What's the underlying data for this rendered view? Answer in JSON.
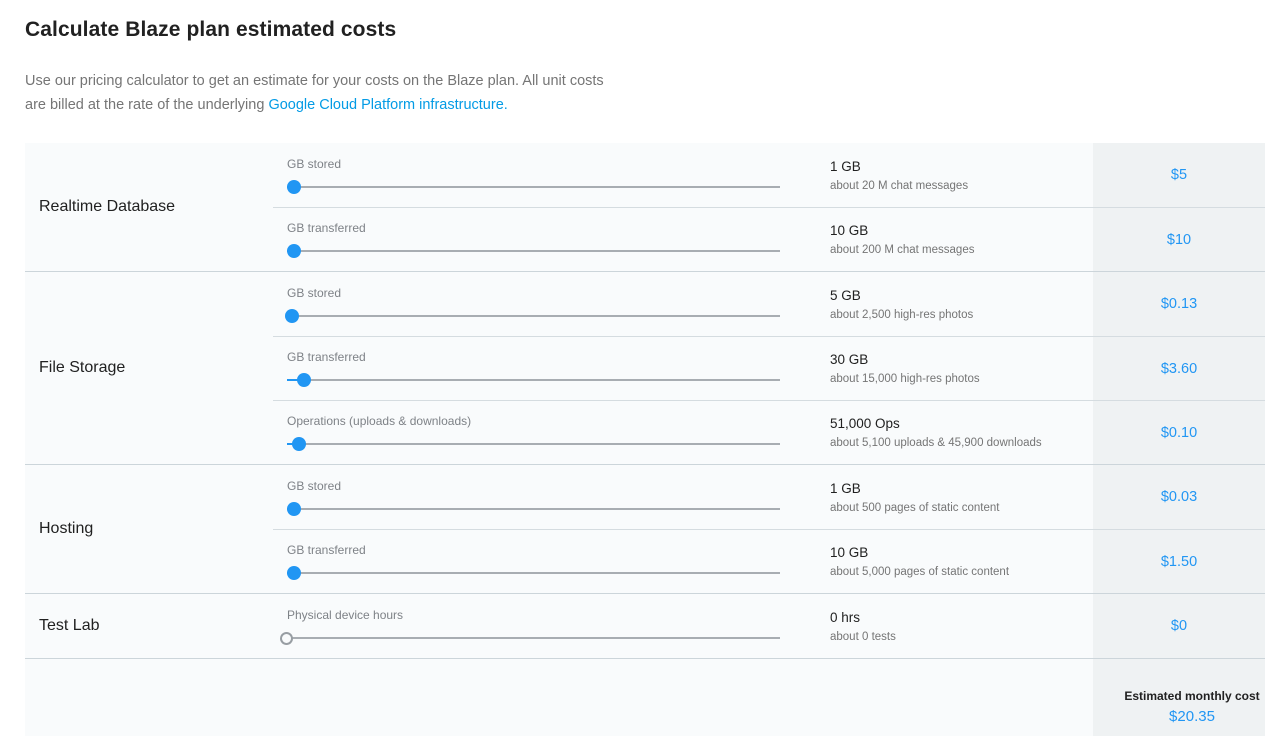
{
  "header": {
    "title": "Calculate Blaze plan estimated costs",
    "intro_line1": "Use our pricing calculator to get an estimate for your costs on the Blaze plan. All unit costs",
    "intro_line2_prefix": "are billed at the rate of the underlying ",
    "intro_link": "Google Cloud Platform infrastructure",
    "intro_suffix": "."
  },
  "colors": {
    "price_blue": "#2196f3",
    "link_blue": "#039be5",
    "price_column_bg": "#eff2f3",
    "table_bg": "#f9fbfc"
  },
  "calculator": {
    "sections": [
      {
        "name": "Realtime Database",
        "rows": [
          {
            "label": "GB stored",
            "slider_percent": 1.5,
            "value": "1 GB",
            "detail": "about 20 M chat messages",
            "price": "$5"
          },
          {
            "label": "GB transferred",
            "slider_percent": 1.5,
            "value": "10 GB",
            "detail": "about 200 M chat messages",
            "price": "$10"
          }
        ]
      },
      {
        "name": "File Storage",
        "rows": [
          {
            "label": "GB stored",
            "slider_percent": 1.0,
            "value": "5 GB",
            "detail": "about 2,500 high-res photos",
            "price": "$0.13"
          },
          {
            "label": "GB transferred",
            "slider_percent": 3.5,
            "value": "30 GB",
            "detail": "about 15,000 high-res photos",
            "price": "$3.60"
          },
          {
            "label": "Operations (uploads & downloads)",
            "slider_percent": 2.5,
            "value": "51,000 Ops",
            "detail": "about 5,100 uploads & 45,900 downloads",
            "price": "$0.10"
          }
        ]
      },
      {
        "name": "Hosting",
        "rows": [
          {
            "label": "GB stored",
            "slider_percent": 1.5,
            "value": "1 GB",
            "detail": "about 500 pages of static content",
            "price": "$0.03"
          },
          {
            "label": "GB transferred",
            "slider_percent": 1.5,
            "value": "10 GB",
            "detail": "about 5,000 pages of static content",
            "price": "$1.50"
          }
        ]
      },
      {
        "name": "Test Lab",
        "rows": [
          {
            "label": "Physical device hours",
            "slider_percent": 0,
            "value": "0 hrs",
            "detail": "about 0 tests",
            "price": "$0"
          }
        ]
      }
    ],
    "footer": {
      "label": "Estimated monthly cost",
      "value": "$20.35"
    }
  }
}
